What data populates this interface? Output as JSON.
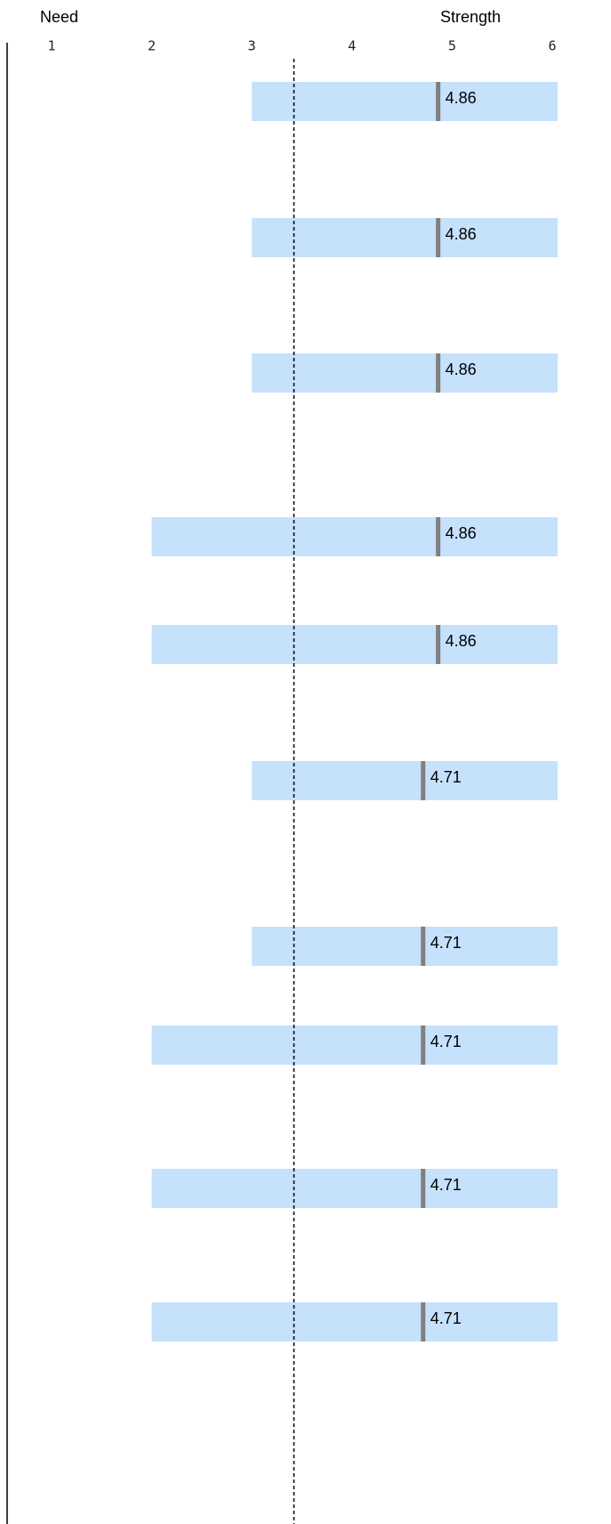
{
  "chart_data": {
    "type": "range_marker",
    "x_label_left": "Need",
    "x_label_right": "Strength",
    "xlim": [
      1,
      6
    ],
    "xticks": [
      1,
      2,
      3,
      4,
      5,
      6
    ],
    "reference": 3.42,
    "bar_starts": [
      3,
      3,
      3,
      2,
      2,
      3,
      3,
      2,
      2,
      2
    ],
    "values": [
      4.86,
      4.86,
      4.86,
      4.86,
      4.86,
      4.71,
      4.71,
      4.71,
      4.71,
      4.71
    ],
    "bar_color": "#c5e1fb",
    "marker_color": "#7f7f7f"
  }
}
